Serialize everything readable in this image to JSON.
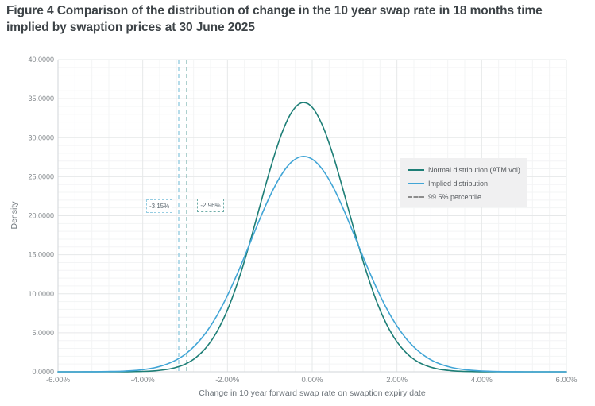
{
  "title": "Figure 4 Comparison of the distribution of change in the 10 year swap rate in 18 months time implied by swaption prices at 30 June 2025",
  "chart_data": {
    "type": "line",
    "title": "",
    "xlabel": "Change in 10 year forward swap rate on swaption expiry date",
    "ylabel": "Density",
    "xlim": [
      -6,
      6
    ],
    "ylim": [
      0,
      40
    ],
    "grid": {
      "x_minor_step_pct": 0.4,
      "x_major_step_pct": 2,
      "y_minor_step": 1,
      "y_major_step": 5
    },
    "x_ticks": [
      {
        "value": -6,
        "label": "-6.00%"
      },
      {
        "value": -4,
        "label": "-4.00%"
      },
      {
        "value": -2,
        "label": "-2.00%"
      },
      {
        "value": 0,
        "label": "0.00%"
      },
      {
        "value": 2,
        "label": "2.00%"
      },
      {
        "value": 4,
        "label": "4.00%"
      },
      {
        "value": 6,
        "label": "6.00%"
      }
    ],
    "y_ticks": [
      {
        "value": 0,
        "label": "0.0000"
      },
      {
        "value": 5,
        "label": "5.0000"
      },
      {
        "value": 10,
        "label": "10.0000"
      },
      {
        "value": 15,
        "label": "15.0000"
      },
      {
        "value": 20,
        "label": "20.0000"
      },
      {
        "value": 25,
        "label": "25.0000"
      },
      {
        "value": 30,
        "label": "30.0000"
      },
      {
        "value": 35,
        "label": "35.0000"
      },
      {
        "value": 40,
        "label": "40.0000"
      }
    ],
    "x": [
      -6,
      -5.75,
      -5.5,
      -5.25,
      -5,
      -4.75,
      -4.5,
      -4.25,
      -4,
      -3.75,
      -3.5,
      -3.25,
      -3,
      -2.75,
      -2.5,
      -2.25,
      -2,
      -1.75,
      -1.5,
      -1.25,
      -1,
      -0.75,
      -0.5,
      -0.25,
      0,
      0.25,
      0.5,
      0.75,
      1,
      1.25,
      1.5,
      1.75,
      2,
      2.25,
      2.5,
      2.75,
      3,
      3.25,
      3.5,
      3.75,
      4,
      4.25,
      4.5,
      4.75,
      5,
      5.25,
      5.5,
      5.75,
      6
    ],
    "series": [
      {
        "name": "Normal distribution (ATM vol)",
        "color": "#1d7e76",
        "style": "solid",
        "peak": {
          "x": -0.25,
          "y": 34.5
        },
        "values": [
          0,
          0,
          0,
          0,
          0,
          0,
          0.01,
          0.02,
          0.05,
          0.11,
          0.25,
          0.51,
          0.98,
          1.81,
          3.13,
          5.13,
          7.93,
          11.6,
          16.03,
          20.93,
          25.81,
          30.08,
          33.12,
          34.46,
          33.88,
          31.47,
          27.62,
          22.91,
          17.95,
          13.3,
          9.3,
          6.15,
          3.84,
          2.27,
          1.26,
          0.67,
          0.33,
          0.16,
          0.07,
          0.03,
          0.01,
          0,
          0,
          0,
          0,
          0,
          0,
          0,
          0
        ]
      },
      {
        "name": "Implied distribution",
        "color": "#41a5d6",
        "style": "solid",
        "peak": {
          "x": -0.25,
          "y": 27.6
        },
        "values": [
          0,
          0,
          0,
          0.01,
          0.02,
          0.04,
          0.07,
          0.14,
          0.27,
          0.49,
          0.85,
          1.41,
          2.24,
          3.45,
          5.08,
          7.19,
          9.79,
          12.79,
          16.07,
          19.39,
          22.49,
          25.05,
          26.82,
          27.58,
          27.25,
          25.87,
          23.6,
          20.68,
          17.41,
          14.08,
          10.95,
          8.18,
          5.87,
          4.04,
          2.68,
          1.7,
          1.04,
          0.61,
          0.35,
          0.19,
          0.1,
          0.05,
          0.02,
          0.01,
          0,
          0,
          0,
          0,
          0
        ]
      }
    ],
    "percentiles": [
      {
        "label": "-3.15%",
        "value": -3.15,
        "color": "#96cde2"
      },
      {
        "label": "-2.96%",
        "value": -2.96,
        "color": "#6fada8"
      }
    ],
    "legend": {
      "position": "right-middle",
      "items": [
        {
          "label": "Normal distribution (ATM vol)",
          "color": "#1d7e76",
          "style": "solid"
        },
        {
          "label": "Implied distribution",
          "color": "#41a5d6",
          "style": "solid"
        },
        {
          "label": "99.5% percentile",
          "color": "#8c8c8c",
          "style": "dashed"
        }
      ]
    },
    "colors": {
      "grid_major": "#e6e8e9",
      "grid_minor": "#f3f4f5",
      "axis_line": "#d2d6d8",
      "tick_label": "#83888c",
      "axis_title": "#6d747a"
    }
  }
}
